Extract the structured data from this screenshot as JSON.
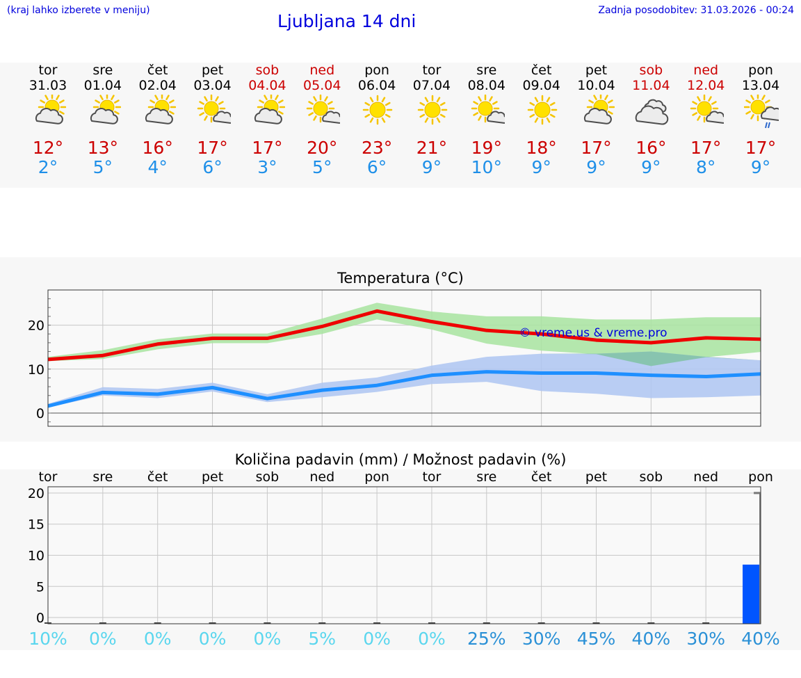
{
  "header": {
    "note": "(kraj lahko izberete v meniju)",
    "title": "Ljubljana 14 dni",
    "updated": "Zadnja posodobitev: 31.03.2026 - 00:24"
  },
  "days": [
    {
      "name": "tor",
      "date": "31.03",
      "weekend": false,
      "icon": "sun-cloud-icon",
      "max": "12°",
      "min": "2°"
    },
    {
      "name": "sre",
      "date": "01.04",
      "weekend": false,
      "icon": "sun-cloud-icon",
      "max": "13°",
      "min": "5°"
    },
    {
      "name": "čet",
      "date": "02.04",
      "weekend": false,
      "icon": "sun-cloud-icon",
      "max": "16°",
      "min": "4°"
    },
    {
      "name": "pet",
      "date": "03.04",
      "weekend": false,
      "icon": "sun-small-cloud-icon",
      "max": "17°",
      "min": "6°"
    },
    {
      "name": "sob",
      "date": "04.04",
      "weekend": true,
      "icon": "sun-cloud-icon",
      "max": "17°",
      "min": "3°"
    },
    {
      "name": "ned",
      "date": "05.04",
      "weekend": true,
      "icon": "sun-small-cloud-icon",
      "max": "20°",
      "min": "5°"
    },
    {
      "name": "pon",
      "date": "06.04",
      "weekend": false,
      "icon": "sun-icon",
      "max": "23°",
      "min": "6°"
    },
    {
      "name": "tor",
      "date": "07.04",
      "weekend": false,
      "icon": "sun-icon",
      "max": "21°",
      "min": "9°"
    },
    {
      "name": "sre",
      "date": "08.04",
      "weekend": false,
      "icon": "sun-small-cloud-icon",
      "max": "19°",
      "min": "10°"
    },
    {
      "name": "čet",
      "date": "09.04",
      "weekend": false,
      "icon": "sun-icon",
      "max": "18°",
      "min": "9°"
    },
    {
      "name": "pet",
      "date": "10.04",
      "weekend": false,
      "icon": "sun-cloud-icon",
      "max": "17°",
      "min": "9°"
    },
    {
      "name": "sob",
      "date": "11.04",
      "weekend": true,
      "icon": "cloudy-icon",
      "max": "16°",
      "min": "9°"
    },
    {
      "name": "ned",
      "date": "12.04",
      "weekend": true,
      "icon": "sun-small-cloud-icon",
      "max": "17°",
      "min": "8°"
    },
    {
      "name": "pon",
      "date": "13.04",
      "weekend": false,
      "icon": "sun-cloud-rain-icon",
      "max": "17°",
      "min": "9°"
    }
  ],
  "colors": {
    "max_line": "#ee0000",
    "min_line": "#1e8fff",
    "max_band": "#a8e4a0",
    "min_band": "#aec6f2",
    "overlap_band": "#84c3a8",
    "bar": "#0055ff",
    "prob_low": "#5ad6ee",
    "prob_high": "#2a90d6"
  },
  "chart_data": [
    {
      "type": "line",
      "title": "Temperatura (°C)",
      "watermark": "© vreme.us & vreme.pro",
      "categories": [
        "31.03",
        "01.04",
        "02.04",
        "03.04",
        "04.04",
        "05.04",
        "06.04",
        "07.04",
        "08.04",
        "09.04",
        "10.04",
        "11.04",
        "12.04",
        "13.04"
      ],
      "ylim": [
        -3,
        28
      ],
      "yticks": [
        0,
        10,
        20
      ],
      "series": [
        {
          "name": "max",
          "values": [
            12.2,
            13.1,
            15.7,
            17.0,
            17.0,
            19.7,
            23.2,
            20.8,
            18.8,
            18.0,
            16.6,
            16.0,
            17.1,
            16.8
          ],
          "band_low": [
            11.8,
            12.3,
            14.5,
            15.9,
            15.9,
            18.0,
            21.3,
            19.0,
            15.8,
            14.2,
            13.4,
            10.7,
            12.7,
            13.9
          ],
          "band_high": [
            12.8,
            14.3,
            16.8,
            18.1,
            18.1,
            21.5,
            25.1,
            23.1,
            22.0,
            22.0,
            21.3,
            21.3,
            21.8,
            21.8
          ]
        },
        {
          "name": "min",
          "values": [
            1.6,
            4.7,
            4.3,
            5.8,
            3.3,
            5.2,
            6.3,
            8.6,
            9.4,
            9.1,
            9.1,
            8.6,
            8.3,
            8.9
          ],
          "band_low": [
            1.3,
            4.0,
            3.4,
            4.9,
            2.5,
            3.6,
            4.8,
            6.6,
            7.1,
            5.0,
            4.4,
            3.4,
            3.6,
            4.0
          ],
          "band_high": [
            2.1,
            5.9,
            5.5,
            6.9,
            4.3,
            6.9,
            8.1,
            10.8,
            12.8,
            13.5,
            13.5,
            14.0,
            12.8,
            12.0
          ]
        }
      ]
    },
    {
      "type": "bar",
      "title": "Količina padavin (mm) / Možnost padavin (%)",
      "categories": [
        "tor",
        "sre",
        "čet",
        "pet",
        "sob",
        "ned",
        "pon",
        "tor",
        "sre",
        "čet",
        "pet",
        "sob",
        "ned",
        "pon"
      ],
      "values": [
        0,
        0,
        0,
        0,
        0,
        0,
        0,
        0,
        0,
        0,
        0,
        0,
        0,
        8.5
      ],
      "probabilities": [
        "10%",
        "0%",
        "0%",
        "0%",
        "0%",
        "5%",
        "0%",
        "0%",
        "25%",
        "30%",
        "45%",
        "40%",
        "30%",
        "40%"
      ],
      "probability_values": [
        10,
        0,
        0,
        0,
        0,
        5,
        0,
        0,
        25,
        30,
        45,
        40,
        30,
        40
      ],
      "ylim": [
        -1,
        21
      ],
      "yticks": [
        0,
        5,
        10,
        15,
        20
      ]
    }
  ]
}
